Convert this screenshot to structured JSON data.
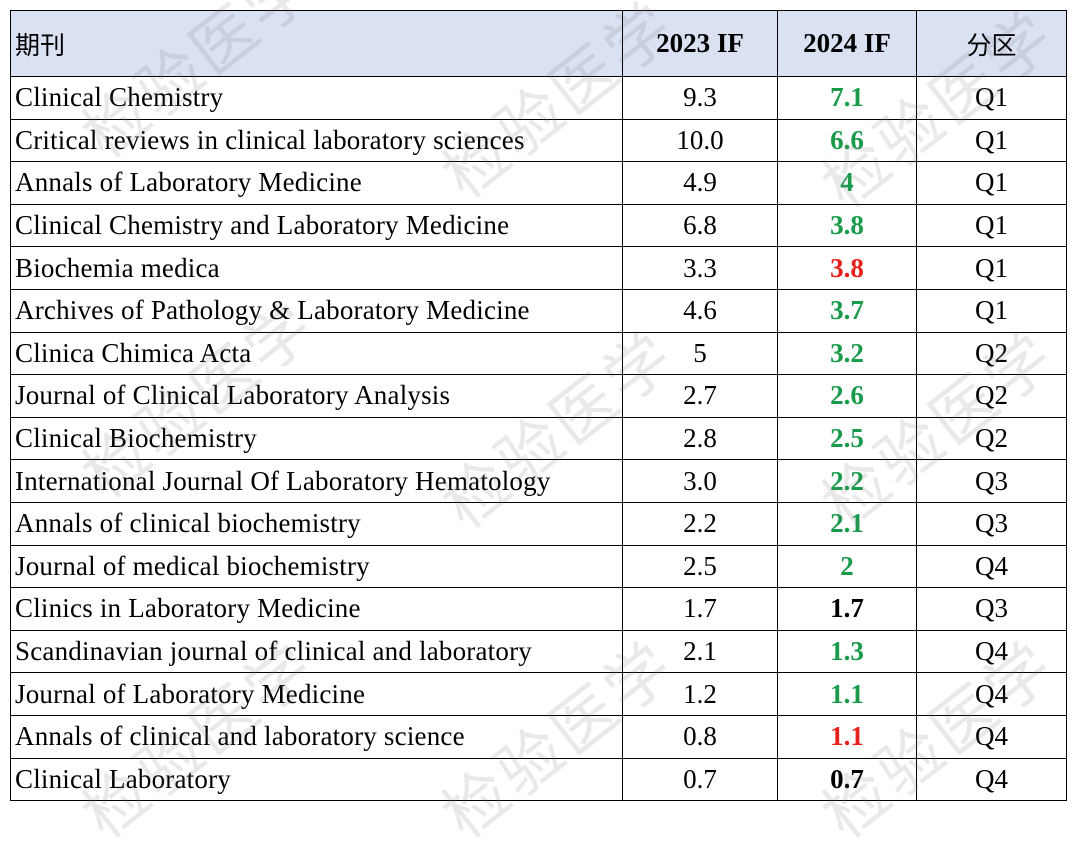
{
  "table": {
    "headers": {
      "journal": "期刊",
      "if2023": "2023 IF",
      "if2024": "2024 IF",
      "quartile": "分区"
    },
    "rows": [
      {
        "journal": "Clinical Chemistry",
        "if2023": "9.3",
        "if2024": "7.1",
        "if2024_color": "#1a9b4b",
        "quartile": "Q1"
      },
      {
        "journal": "Critical reviews in clinical laboratory sciences",
        "if2023": "10.0",
        "if2024": "6.6",
        "if2024_color": "#1a9b4b",
        "quartile": "Q1"
      },
      {
        "journal": "Annals of Laboratory Medicine",
        "if2023": "4.9",
        "if2024": "4",
        "if2024_color": "#1a9b4b",
        "quartile": "Q1"
      },
      {
        "journal": "Clinical Chemistry and Laboratory Medicine",
        "if2023": "6.8",
        "if2024": "3.8",
        "if2024_color": "#1a9b4b",
        "quartile": "Q1"
      },
      {
        "journal": "Biochemia medica",
        "if2023": "3.3",
        "if2024": "3.8",
        "if2024_color": "#e8211d",
        "quartile": "Q1"
      },
      {
        "journal": "Archives of Pathology & Laboratory Medicine",
        "if2023": "4.6",
        "if2024": "3.7",
        "if2024_color": "#1a9b4b",
        "quartile": "Q1"
      },
      {
        "journal": "Clinica Chimica Acta",
        "if2023": "5",
        "if2024": "3.2",
        "if2024_color": "#1a9b4b",
        "quartile": "Q2"
      },
      {
        "journal": "Journal of Clinical Laboratory Analysis",
        "if2023": "2.7",
        "if2024": "2.6",
        "if2024_color": "#1a9b4b",
        "quartile": "Q2"
      },
      {
        "journal": "Clinical Biochemistry",
        "if2023": "2.8",
        "if2024": "2.5",
        "if2024_color": "#1a9b4b",
        "quartile": "Q2"
      },
      {
        "journal": "International Journal Of Laboratory Hematology",
        "if2023": "3.0",
        "if2024": "2.2",
        "if2024_color": "#1a9b4b",
        "quartile": "Q3"
      },
      {
        "journal": "Annals of clinical biochemistry",
        "if2023": "2.2",
        "if2024": "2.1",
        "if2024_color": "#1a9b4b",
        "quartile": "Q3"
      },
      {
        "journal": "Journal of medical biochemistry",
        "if2023": "2.5",
        "if2024": "2",
        "if2024_color": "#1a9b4b",
        "quartile": "Q4"
      },
      {
        "journal": "Clinics in Laboratory Medicine",
        "if2023": "1.7",
        "if2024": "1.7",
        "if2024_color": "#000000",
        "quartile": "Q3"
      },
      {
        "journal": "Scandinavian journal of clinical and laboratory",
        "if2023": "2.1",
        "if2024": "1.3",
        "if2024_color": "#1a9b4b",
        "quartile": "Q4"
      },
      {
        "journal": "Journal of Laboratory Medicine",
        "if2023": "1.2",
        "if2024": "1.1",
        "if2024_color": "#1a9b4b",
        "quartile": "Q4"
      },
      {
        "journal": "Annals of clinical and laboratory science",
        "if2023": "0.8",
        "if2024": "1.1",
        "if2024_color": "#e8211d",
        "quartile": "Q4"
      },
      {
        "journal": "Clinical Laboratory",
        "if2023": "0.7",
        "if2024": "0.7",
        "if2024_color": "#000000",
        "quartile": "Q4"
      }
    ]
  },
  "watermark": {
    "text": "检验医学"
  },
  "colors": {
    "header_bg": "#d9e1f2",
    "decrease": "#1a9b4b",
    "increase": "#e8211d",
    "unchanged": "#000000",
    "border": "#000000"
  }
}
